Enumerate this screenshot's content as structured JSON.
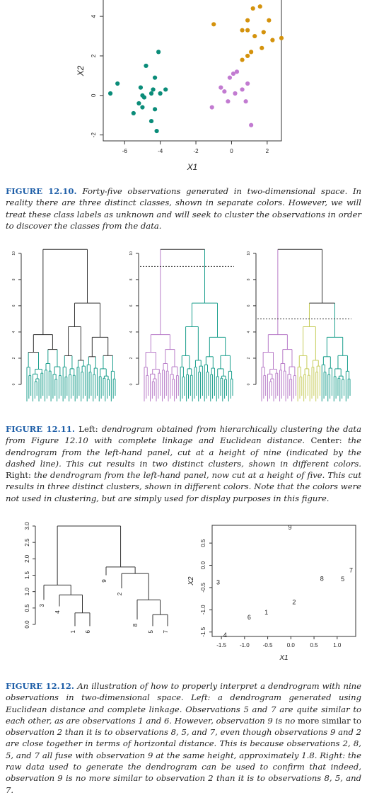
{
  "captions": {
    "fig10": {
      "label": "FIGURE 12.10.",
      "parts": [
        {
          "t": "Forty-five observations generated in two-dimensional space. In reality there are three distinct classes, shown in separate colors. However, we will treat these class labels as unknown and will seek to cluster the observations in order to discover the classes from the data.",
          "i": true
        }
      ]
    },
    "fig11": {
      "label": "FIGURE 12.11.",
      "parts": [
        {
          "t": "Left:",
          "i": false
        },
        {
          "t": "dendrogram obtained from hierarchically clustering the data from Figure 12.10 with complete linkage and Euclidean distance.",
          "i": true
        },
        {
          "t": "Center:",
          "i": false
        },
        {
          "t": "the dendrogram from the left-hand panel, cut at a height of nine (indicated by the dashed line). This cut results in two distinct clusters, shown in different colors.",
          "i": true
        },
        {
          "t": "Right:",
          "i": false
        },
        {
          "t": "the dendrogram from the left-hand panel, now cut at a height of five. This cut results in three distinct clusters, shown in different colors. Note that the colors were not used in clustering, but are simply used for display purposes in this figure.",
          "i": true
        }
      ]
    },
    "fig12": {
      "label": "FIGURE 12.12.",
      "parts": [
        {
          "t": "An illustration of how to properly interpret a dendrogram with nine observations in two-dimensional space. Left: a dendrogram generated using Euclidean distance and complete linkage. Observations 5 and 7 are quite similar to each other, as are observations 1 and 6. However, observation 9 is no",
          "i": true
        },
        {
          "t": "more similar to",
          "i": false
        },
        {
          "t": "observation 2 than it is to observations 8, 5, and 7, even though observations 9 and 2 are close together in terms of horizontal distance. This is because observations 2, 8, 5, and 7 all fuse with observation 9 at the same height, approximately 1.8. Right: the raw data used to generate the dendrogram can be used to confirm that indeed, observation 9 is no more similar to observation 2 than it is to observations 8, 5, and 7.",
          "i": true
        }
      ]
    }
  },
  "chart_data": [
    {
      "type": "scatter",
      "title": "",
      "xlabel": "X1",
      "ylabel": "X2",
      "xlim": [
        -7.2,
        2.8
      ],
      "ylim": [
        -2.3,
        4.9
      ],
      "xticks": [
        "-6",
        "-4",
        "-2",
        "0",
        "2"
      ],
      "yticks": [
        "-2",
        "0",
        "2",
        "4"
      ],
      "colors": {
        "green": "#0a8c79",
        "orange": "#d4920c",
        "purple": "#c27bd1"
      },
      "series": [
        {
          "color": "green",
          "points": [
            [
              -6.8,
              0.1
            ],
            [
              -6.4,
              0.6
            ],
            [
              -4.1,
              2.2
            ],
            [
              -4.8,
              1.5
            ],
            [
              -4.3,
              0.9
            ],
            [
              -5.1,
              0.4
            ],
            [
              -4.4,
              0.3
            ],
            [
              -3.7,
              0.3
            ],
            [
              -4.0,
              0.1
            ],
            [
              -5.0,
              0.0
            ],
            [
              -4.5,
              0.1
            ],
            [
              -5.2,
              -0.4
            ],
            [
              -4.3,
              -0.7
            ],
            [
              -5.0,
              -0.6
            ],
            [
              -5.5,
              -0.9
            ],
            [
              -4.5,
              -1.3
            ],
            [
              -4.2,
              -1.8
            ],
            [
              -4.9,
              -0.1
            ]
          ]
        },
        {
          "color": "orange",
          "points": [
            [
              2.5,
              5.0
            ],
            [
              1.6,
              4.5
            ],
            [
              2.1,
              3.8
            ],
            [
              1.2,
              4.4
            ],
            [
              0.9,
              3.8
            ],
            [
              -1.0,
              3.6
            ],
            [
              0.6,
              3.3
            ],
            [
              1.3,
              3.0
            ],
            [
              0.9,
              3.3
            ],
            [
              1.8,
              3.2
            ],
            [
              2.3,
              2.8
            ],
            [
              2.8,
              2.9
            ],
            [
              1.7,
              2.4
            ],
            [
              1.1,
              2.2
            ],
            [
              0.9,
              2.0
            ],
            [
              0.6,
              1.8
            ]
          ]
        },
        {
          "color": "purple",
          "points": [
            [
              0.3,
              1.2
            ],
            [
              0.1,
              1.1
            ],
            [
              -0.1,
              0.9
            ],
            [
              0.9,
              0.6
            ],
            [
              0.6,
              0.3
            ],
            [
              -0.4,
              0.2
            ],
            [
              0.2,
              0.1
            ],
            [
              -0.6,
              0.4
            ],
            [
              -0.2,
              -0.3
            ],
            [
              0.8,
              -0.3
            ],
            [
              -1.1,
              -0.6
            ],
            [
              1.1,
              -1.5
            ]
          ]
        }
      ]
    },
    {
      "type": "dendrogram",
      "panels": [
        "Left",
        "Center",
        "Right"
      ],
      "yticks": [
        "0",
        "2",
        "4",
        "6",
        "8",
        "10"
      ],
      "cut_heights": [
        null,
        9,
        5
      ],
      "colors": {
        "teal": "#1a9e8c",
        "violet": "#b87cc8",
        "olive": "#c6cc5a",
        "black": "#333333"
      }
    },
    {
      "type": "dendrogram",
      "panel": "Left",
      "yticks": [
        "0.0",
        "0.5",
        "1.0",
        "1.5",
        "2.0",
        "2.5",
        "3.0"
      ],
      "leaves": [
        "3",
        "4",
        "1",
        "6",
        "9",
        "2",
        "8",
        "5",
        "7"
      ]
    },
    {
      "type": "scatter",
      "panel": "Right",
      "xlabel": "X1",
      "ylabel": "X2",
      "xticks": [
        "-1.5",
        "-1.0",
        "-0.5",
        "0.0",
        "0.5",
        "1.0"
      ],
      "yticks": [
        "-1.5",
        "-1.0",
        "-0.5",
        "0.0",
        "0.5"
      ],
      "xlim": [
        -1.7,
        1.4
      ],
      "ylim": [
        -1.6,
        0.9
      ],
      "points": [
        {
          "label": "1",
          "x": -0.53,
          "y": -1.06
        },
        {
          "label": "2",
          "x": 0.07,
          "y": -0.83
        },
        {
          "label": "3",
          "x": -1.57,
          "y": -0.38
        },
        {
          "label": "4",
          "x": -1.42,
          "y": -1.57
        },
        {
          "label": "5",
          "x": 1.12,
          "y": -0.31
        },
        {
          "label": "6",
          "x": -0.9,
          "y": -1.17
        },
        {
          "label": "7",
          "x": 1.3,
          "y": -0.11
        },
        {
          "label": "8",
          "x": 0.67,
          "y": -0.3
        },
        {
          "label": "9",
          "x": -0.02,
          "y": 0.85
        }
      ]
    }
  ]
}
